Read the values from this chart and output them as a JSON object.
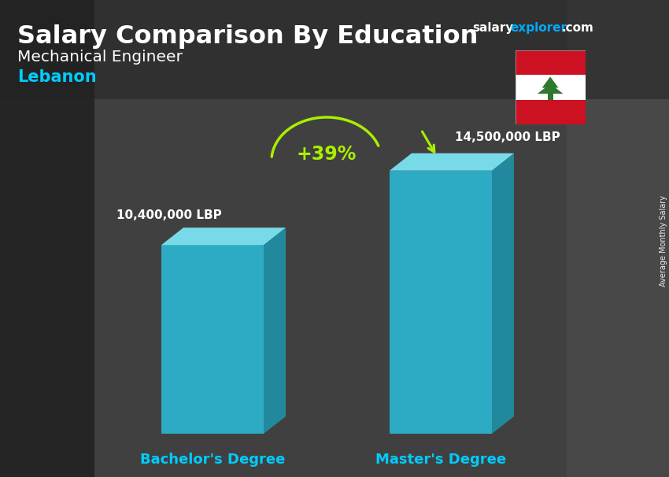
{
  "title_salary": "Salary Comparison By Education",
  "subtitle_job": "Mechanical Engineer",
  "subtitle_country": "Lebanon",
  "categories": [
    "Bachelor's Degree",
    "Master's Degree"
  ],
  "values": [
    10400000,
    14500000
  ],
  "value_labels": [
    "10,400,000 LBP",
    "14,500,000 LBP"
  ],
  "pct_change": "+39%",
  "bar_front_color": "#29c5e6",
  "bar_side_color": "#1a9bb5",
  "bar_top_color": "#7de8f8",
  "text_white": "#ffffff",
  "text_cyan": "#00ccff",
  "text_green": "#aaee00",
  "brand_color_salary": "#ffffff",
  "brand_color_explorer": "#00aaff",
  "brand_color_com": "#ffffff",
  "bg_color": "#3a3a3a",
  "side_label": "Average Monthly Salary",
  "ylim_max": 18000000,
  "fig_width": 8.5,
  "fig_height": 6.06,
  "dpi": 100
}
